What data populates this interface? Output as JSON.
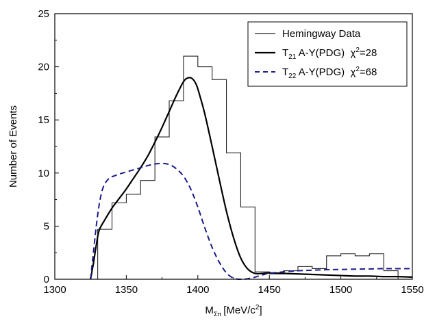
{
  "chart_data": {
    "type": "line",
    "xlabel": {
      "main": "M",
      "sub": "Σπ",
      "units_pre": "[MeV/c",
      "sup": "2",
      "units_post": "]"
    },
    "ylabel": "Number of Events",
    "xlim": [
      1300,
      1550
    ],
    "ylim": [
      0,
      25
    ],
    "xticks": [
      1300,
      1350,
      1400,
      1450,
      1500,
      1550
    ],
    "yticks": [
      0,
      5,
      10,
      15,
      20,
      25
    ],
    "grid": false,
    "legend_position": "top-right",
    "legend": [
      {
        "id": "hist",
        "label": "Hemingway Data"
      },
      {
        "id": "t21",
        "pre": "T",
        "sub": "21",
        "mid": " A-Y(PDG)  χ",
        "sup": "2",
        "post": "=28"
      },
      {
        "id": "t22",
        "pre": "T",
        "sub": "22",
        "mid": " A-Y(PDG)  χ",
        "sup": "2",
        "post": "=68"
      }
    ],
    "series": [
      {
        "id": "hist",
        "kind": "step-histogram",
        "style": "thin-solid",
        "color": "#222222",
        "bin_edges": [
          1330,
          1335,
          1340,
          1345,
          1350,
          1355,
          1360,
          1365,
          1370,
          1375,
          1380,
          1385,
          1390,
          1395,
          1400,
          1405,
          1410,
          1415,
          1420,
          1425,
          1430,
          1435,
          1440,
          1445,
          1450,
          1455,
          1460,
          1465,
          1470,
          1475,
          1480,
          1485,
          1490,
          1495,
          1500,
          1505,
          1510,
          1515,
          1520,
          1525,
          1530,
          1535,
          1540
        ],
        "values": [
          4.7,
          4.7,
          7.2,
          7.2,
          8.0,
          8.0,
          9.3,
          9.3,
          13.4,
          13.4,
          16.8,
          16.8,
          21.0,
          21.0,
          20.0,
          20.0,
          18.8,
          18.8,
          11.9,
          11.9,
          6.8,
          6.8,
          0.7,
          0.7,
          0.5,
          0.5,
          0.8,
          0.8,
          1.2,
          1.2,
          1.0,
          1.0,
          2.2,
          2.2,
          2.4,
          2.4,
          2.2,
          2.2,
          2.4,
          2.4,
          0.8,
          0.8
        ]
      },
      {
        "id": "t21",
        "kind": "curve",
        "style": "thick-solid",
        "color": "#000000",
        "x": [
          1325,
          1327,
          1329,
          1331,
          1335,
          1340,
          1345,
          1350,
          1355,
          1360,
          1365,
          1370,
          1375,
          1380,
          1385,
          1390,
          1393,
          1396,
          1399,
          1402,
          1405,
          1410,
          1415,
          1420,
          1425,
          1430,
          1435,
          1440,
          1445,
          1450,
          1460,
          1470,
          1480,
          1490,
          1500,
          1510,
          1520,
          1530,
          1540,
          1550
        ],
        "y": [
          0,
          1.5,
          3.2,
          4.6,
          5.6,
          6.7,
          7.6,
          8.5,
          9.5,
          10.5,
          11.6,
          12.9,
          14.3,
          15.8,
          17.3,
          18.6,
          18.95,
          18.9,
          18.3,
          17.0,
          15.5,
          12.5,
          9.4,
          6.4,
          3.9,
          2.0,
          0.95,
          0.55,
          0.55,
          0.6,
          0.55,
          0.5,
          0.45,
          0.4,
          0.35,
          0.3,
          0.3,
          0.25,
          0.25,
          0.2
        ]
      },
      {
        "id": "t22",
        "kind": "curve",
        "style": "dashed",
        "color": "#1a1a8c",
        "x": [
          1325,
          1327,
          1329,
          1331,
          1333,
          1335,
          1338,
          1341,
          1345,
          1350,
          1355,
          1360,
          1365,
          1370,
          1375,
          1380,
          1385,
          1390,
          1395,
          1400,
          1405,
          1410,
          1415,
          1420,
          1425,
          1430,
          1435,
          1440,
          1445,
          1450,
          1460,
          1470,
          1480,
          1490,
          1500,
          1510,
          1520,
          1530,
          1540,
          1550
        ],
        "y": [
          0,
          2.5,
          5.0,
          7.0,
          8.3,
          9.0,
          9.5,
          9.7,
          9.9,
          10.1,
          10.3,
          10.5,
          10.7,
          10.85,
          10.9,
          10.8,
          10.4,
          9.7,
          8.5,
          6.8,
          4.8,
          3.0,
          1.6,
          0.6,
          0.1,
          0,
          0.05,
          0.2,
          0.4,
          0.55,
          0.7,
          0.8,
          0.85,
          0.9,
          0.92,
          0.95,
          0.97,
          1.0,
          1.0,
          1.0
        ]
      }
    ]
  }
}
